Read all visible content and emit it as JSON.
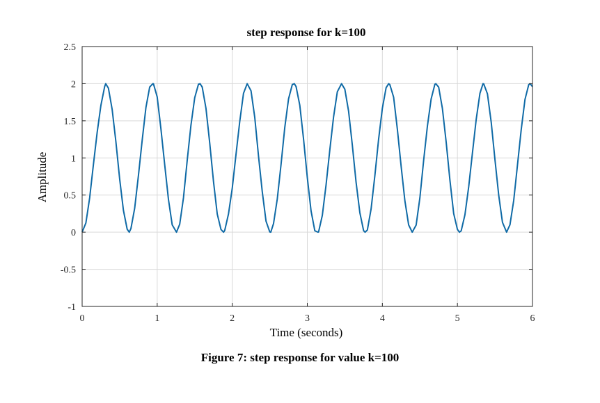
{
  "chart_data": {
    "type": "line",
    "title": "step response for k=100",
    "xlabel": "Time (seconds)",
    "ylabel": "Amplitude",
    "xlim": [
      0,
      6
    ],
    "ylim": [
      -1,
      2.5
    ],
    "xticks": [
      0,
      1,
      2,
      3,
      4,
      5,
      6
    ],
    "xtick_labels": [
      "0",
      "1",
      "2",
      "3",
      "4",
      "5",
      "6"
    ],
    "yticks": [
      -1,
      -0.5,
      0,
      0.5,
      1,
      1.5,
      2,
      2.5
    ],
    "ytick_labels": [
      "-1",
      "-0.5",
      "0",
      "0.5",
      "1",
      "1.5",
      "2",
      "2.5"
    ],
    "grid": true,
    "legend": "none",
    "line_color": "#0f6aa6",
    "series": [
      {
        "x": [
          0,
          0.05,
          0.1,
          0.15,
          0.2,
          0.25,
          0.3,
          0.314,
          0.35,
          0.4,
          0.45,
          0.5,
          0.55,
          0.6,
          0.628,
          0.65,
          0.7,
          0.75,
          0.8,
          0.85,
          0.9,
          0.942,
          0.95,
          1.0,
          1.05,
          1.1,
          1.15,
          1.2,
          1.257,
          1.3,
          1.35,
          1.4,
          1.45,
          1.5,
          1.55,
          1.571,
          1.6,
          1.65,
          1.7,
          1.75,
          1.8,
          1.85,
          1.885,
          1.9,
          1.95,
          2.0,
          2.05,
          2.1,
          2.15,
          2.199,
          2.25,
          2.3,
          2.35,
          2.4,
          2.45,
          2.5,
          2.513,
          2.55,
          2.6,
          2.65,
          2.7,
          2.75,
          2.8,
          2.827,
          2.85,
          2.9,
          2.95,
          3.0,
          3.05,
          3.1,
          3.142,
          3.15,
          3.2,
          3.25,
          3.3,
          3.35,
          3.4,
          3.456,
          3.5,
          3.55,
          3.6,
          3.65,
          3.7,
          3.75,
          3.77,
          3.8,
          3.85,
          3.9,
          3.95,
          4.0,
          4.05,
          4.084,
          4.1,
          4.15,
          4.2,
          4.25,
          4.3,
          4.35,
          4.398,
          4.45,
          4.5,
          4.55,
          4.6,
          4.65,
          4.7,
          4.712,
          4.75,
          4.8,
          4.85,
          4.9,
          4.95,
          5.0,
          5.027,
          5.05,
          5.1,
          5.15,
          5.2,
          5.25,
          5.3,
          5.341,
          5.35,
          5.4,
          5.45,
          5.5,
          5.55,
          5.6,
          5.655,
          5.7,
          5.75,
          5.8,
          5.85,
          5.9,
          5.95,
          5.969,
          6.0
        ],
        "y": [
          0,
          0.124,
          0.46,
          0.909,
          1.342,
          1.708,
          1.96,
          2.0,
          1.94,
          1.653,
          1.215,
          0.716,
          0.295,
          0.04,
          0.0,
          0.048,
          0.322,
          0.763,
          1.238,
          1.68,
          1.954,
          2.0,
          1.999,
          1.822,
          1.389,
          0.909,
          0.441,
          0.098,
          0.0,
          0.107,
          0.462,
          0.969,
          1.443,
          1.811,
          1.993,
          2.0,
          1.954,
          1.667,
          1.199,
          0.684,
          0.245,
          0.036,
          0.0,
          0.024,
          0.246,
          0.592,
          1.047,
          1.491,
          1.87,
          2.0,
          1.904,
          1.545,
          1.023,
          0.544,
          0.148,
          0.003,
          0.0,
          0.115,
          0.448,
          0.912,
          1.411,
          1.795,
          1.988,
          2.0,
          1.962,
          1.708,
          1.253,
          0.737,
          0.286,
          0.019,
          0.0,
          0.003,
          0.226,
          0.638,
          1.109,
          1.553,
          1.891,
          2.0,
          1.925,
          1.629,
          1.17,
          0.67,
          0.263,
          0.02,
          0.0,
          0.029,
          0.314,
          0.761,
          1.252,
          1.669,
          1.946,
          2.0,
          1.986,
          1.818,
          1.384,
          0.888,
          0.423,
          0.098,
          0.0,
          0.096,
          0.464,
          0.967,
          1.428,
          1.795,
          1.993,
          2.0,
          1.954,
          1.665,
          1.213,
          0.701,
          0.251,
          0.037,
          0.0,
          0.018,
          0.234,
          0.61,
          1.066,
          1.518,
          1.87,
          2.0,
          1.998,
          1.863,
          1.482,
          0.978,
          0.499,
          0.132,
          0.0,
          0.1,
          0.427,
          0.904,
          1.382,
          1.787,
          1.987,
          2.0,
          1.96
        ]
      }
    ]
  },
  "figure_caption": "Figure 7:  step response for value k=100"
}
